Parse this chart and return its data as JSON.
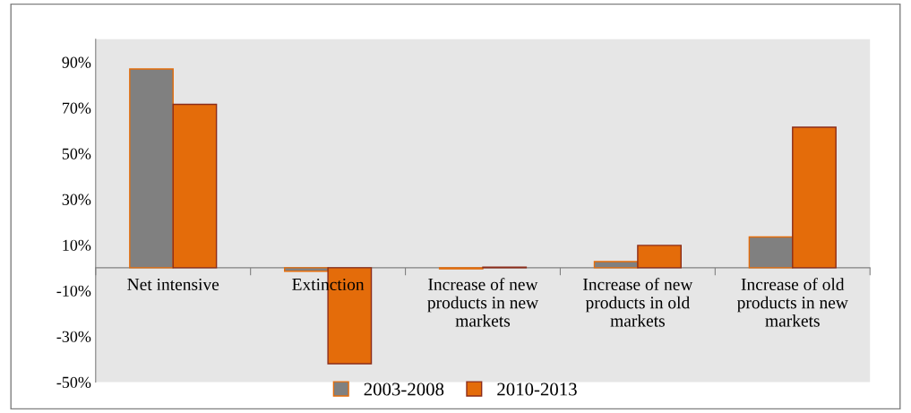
{
  "chart_data": {
    "type": "bar",
    "categories": [
      "Net intensive",
      "Extinction",
      "Increase of new products in new markets",
      "Increase of new products in old markets",
      "Increase of old products in new markets"
    ],
    "series": [
      {
        "name": "2003-2008",
        "color": "#808080",
        "values": [
          87,
          -1.5,
          -0.5,
          2.7,
          13.5
        ]
      },
      {
        "name": "2010-2013",
        "color": "#e46c0a",
        "values": [
          71.5,
          -42,
          0.3,
          9.8,
          61.5
        ]
      }
    ],
    "ylim": [
      -50,
      100
    ],
    "yticks": [
      {
        "value": -50,
        "label": "-50%"
      },
      {
        "value": -30,
        "label": "-30%"
      },
      {
        "value": -10,
        "label": "-10%"
      },
      {
        "value": 10,
        "label": "10%"
      },
      {
        "value": 30,
        "label": "30%"
      },
      {
        "value": 50,
        "label": "50%"
      },
      {
        "value": 70,
        "label": "70%"
      },
      {
        "value": 90,
        "label": "90%"
      }
    ],
    "grid": false,
    "legend": "bottom"
  }
}
